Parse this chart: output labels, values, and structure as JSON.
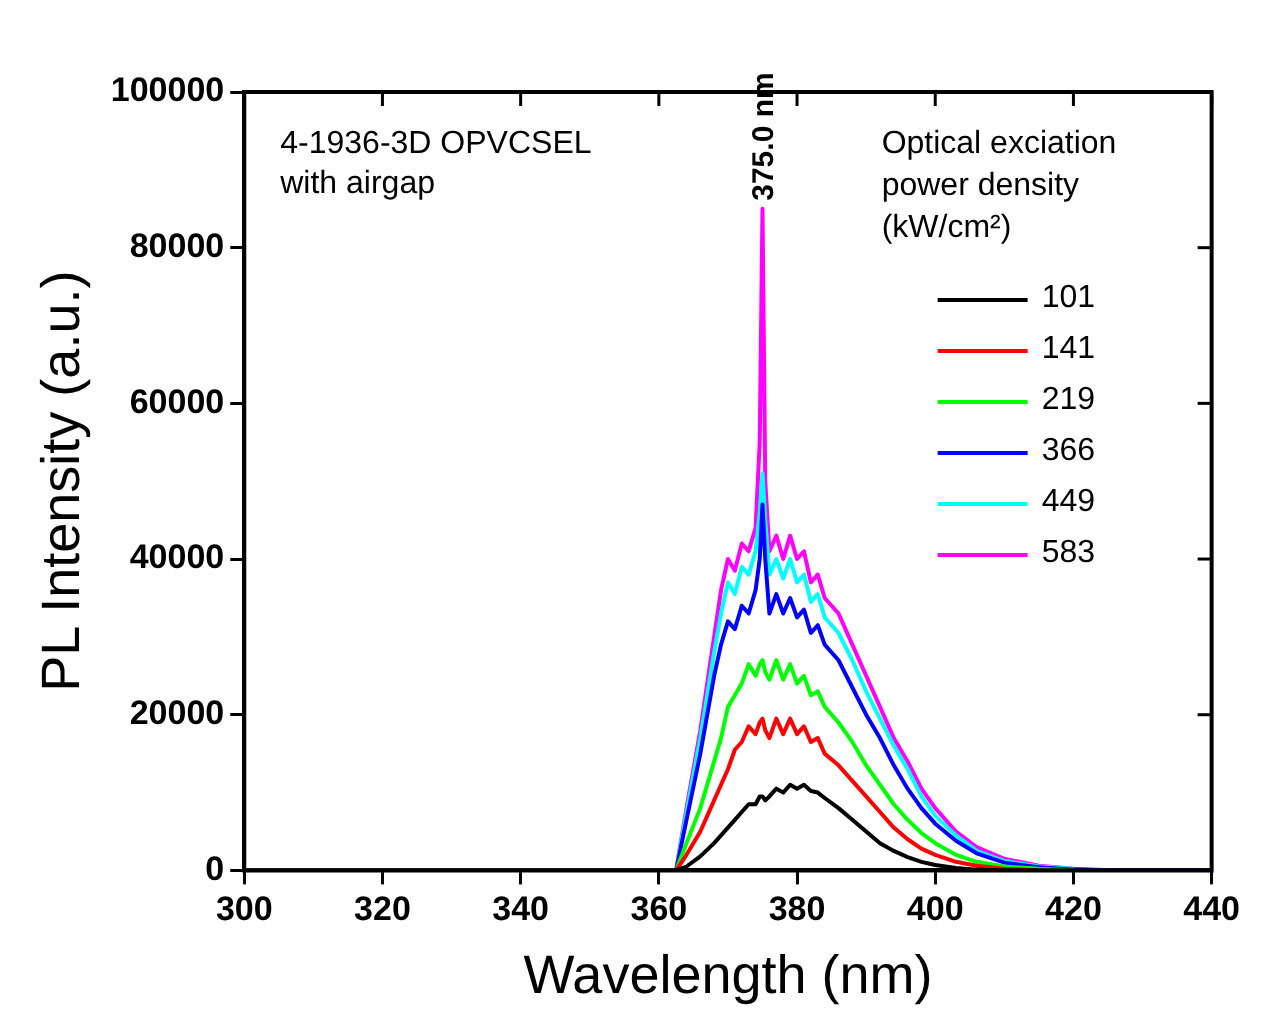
{
  "chart_data": {
    "type": "line",
    "xlabel": "Wavelength (nm)",
    "ylabel": "PL Intensity (a.u.)",
    "legend_title": "Optical exciation power density (kW/cm²)",
    "legend": "top right",
    "grid": false,
    "marker": "none",
    "line_style": "solid",
    "xlim": [
      300,
      440
    ],
    "xticks": [
      300,
      320,
      340,
      360,
      380,
      400,
      420,
      440
    ],
    "ylim": [
      0,
      100000
    ],
    "yticks": [
      0,
      20000,
      40000,
      60000,
      80000,
      100000
    ],
    "x": [
      300,
      362.5,
      364,
      366,
      368,
      369,
      370,
      371,
      372,
      373,
      374,
      374.6,
      375,
      375.4,
      376,
      377,
      378,
      379,
      380,
      381,
      382,
      383,
      384,
      386,
      388,
      390,
      392,
      394,
      396,
      398,
      400,
      403,
      406,
      410,
      415,
      420,
      426,
      440
    ],
    "annotations": [
      "4-1936-3D OPVCSEL with airgap",
      {
        "text": "375.0 nm",
        "x": 375,
        "y": 85000
      }
    ],
    "series": [
      {
        "name": "101",
        "color": "#000000",
        "values": [
          0,
          0,
          500,
          1800,
          3500,
          4500,
          5500,
          6500,
          7500,
          8500,
          8500,
          9500,
          9500,
          9000,
          9500,
          10500,
          10000,
          11000,
          10500,
          11000,
          10200,
          10000,
          9300,
          8000,
          6500,
          5000,
          3500,
          2500,
          1700,
          1100,
          700,
          300,
          100,
          0,
          0,
          0,
          0,
          0
        ]
      },
      {
        "name": "141",
        "color": "#ff0000",
        "values": [
          0,
          0,
          2000,
          5000,
          9000,
          11000,
          13000,
          15500,
          16500,
          18500,
          17500,
          19000,
          19500,
          18000,
          17000,
          19500,
          17500,
          19500,
          17500,
          18500,
          16500,
          17000,
          15000,
          13500,
          11500,
          9500,
          7500,
          5500,
          4000,
          2800,
          2000,
          1100,
          600,
          200,
          0,
          null,
          null,
          null
        ]
      },
      {
        "name": "219",
        "color": "#00ff00",
        "values": [
          0,
          0,
          3500,
          8000,
          14000,
          17000,
          21000,
          22500,
          24000,
          26500,
          25000,
          26500,
          27000,
          25500,
          24500,
          27000,
          24500,
          26500,
          24000,
          25000,
          22500,
          23000,
          21000,
          19000,
          16500,
          13500,
          11000,
          8500,
          6500,
          4800,
          3500,
          2000,
          1100,
          500,
          200,
          0,
          null,
          null
        ]
      },
      {
        "name": "366",
        "color": "#0000ff",
        "values": [
          0,
          0,
          6500,
          15000,
          25000,
          29000,
          32000,
          31000,
          34000,
          33000,
          36000,
          40000,
          47000,
          40000,
          33000,
          35500,
          33000,
          35000,
          32500,
          33500,
          30500,
          31500,
          29000,
          27000,
          23500,
          20000,
          17000,
          13500,
          10500,
          8000,
          6000,
          3800,
          2200,
          1000,
          400,
          100,
          0,
          0
        ]
      },
      {
        "name": "449",
        "color": "#00ffff",
        "values": [
          0,
          0,
          7500,
          17000,
          28000,
          33000,
          37000,
          35500,
          39000,
          38000,
          41000,
          46000,
          51000,
          45000,
          38000,
          40000,
          37500,
          40000,
          37000,
          38000,
          34500,
          35500,
          32500,
          30500,
          27000,
          23000,
          19500,
          16000,
          13000,
          9500,
          7000,
          4500,
          2500,
          1200,
          500,
          200,
          null,
          null
        ]
      },
      {
        "name": "583",
        "color": "#ff00ff",
        "values": [
          0,
          0,
          8000,
          18000,
          30000,
          36000,
          40000,
          38500,
          42000,
          41000,
          44000,
          55000,
          85000,
          50000,
          41000,
          43000,
          40000,
          43000,
          40000,
          41000,
          37000,
          38000,
          35000,
          33000,
          29000,
          25000,
          21000,
          17000,
          14000,
          10500,
          8000,
          5000,
          3000,
          1500,
          600,
          200,
          0,
          0
        ]
      }
    ]
  }
}
